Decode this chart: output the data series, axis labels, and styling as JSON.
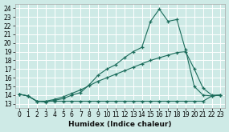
{
  "title": "",
  "xlabel": "Humidex (Indice chaleur)",
  "ylabel": "",
  "bg_color": "#ceeae6",
  "grid_color": "#b0d8d4",
  "line_color": "#1a6b5a",
  "xlim": [
    -0.5,
    23.5
  ],
  "ylim": [
    12.5,
    24.5
  ],
  "xticks": [
    0,
    1,
    2,
    3,
    4,
    5,
    6,
    7,
    8,
    9,
    10,
    11,
    12,
    13,
    14,
    15,
    16,
    17,
    18,
    19,
    20,
    21,
    22,
    23
  ],
  "yticks": [
    13,
    14,
    15,
    16,
    17,
    18,
    19,
    20,
    21,
    22,
    23,
    24
  ],
  "line1_x": [
    0,
    1,
    2,
    3,
    4,
    5,
    6,
    7,
    8,
    9,
    10,
    11,
    12,
    13,
    14,
    15,
    16,
    17,
    18,
    19,
    20,
    21,
    22,
    23
  ],
  "line1_y": [
    14.1,
    13.9,
    13.3,
    13.2,
    13.4,
    13.6,
    14.0,
    14.3,
    15.2,
    16.3,
    17.0,
    17.5,
    18.3,
    19.0,
    19.5,
    22.5,
    23.9,
    22.5,
    22.7,
    19.2,
    15.0,
    14.0,
    13.9,
    14.0
  ],
  "line2_x": [
    0,
    1,
    2,
    3,
    4,
    5,
    6,
    7,
    8,
    9,
    10,
    11,
    12,
    13,
    14,
    15,
    16,
    17,
    18,
    19,
    20,
    21,
    22,
    23
  ],
  "line2_y": [
    14.1,
    13.9,
    13.3,
    13.3,
    13.5,
    13.8,
    14.2,
    14.6,
    15.1,
    15.6,
    16.0,
    16.4,
    16.8,
    17.2,
    17.6,
    18.0,
    18.3,
    18.6,
    18.9,
    19.0,
    17.0,
    14.8,
    14.0,
    14.0
  ],
  "line3_x": [
    0,
    1,
    2,
    3,
    4,
    5,
    6,
    7,
    8,
    9,
    10,
    11,
    12,
    13,
    14,
    15,
    16,
    17,
    18,
    19,
    20,
    21,
    22,
    23
  ],
  "line3_y": [
    14.1,
    13.9,
    13.3,
    13.3,
    13.3,
    13.3,
    13.3,
    13.3,
    13.3,
    13.3,
    13.3,
    13.3,
    13.3,
    13.3,
    13.3,
    13.3,
    13.3,
    13.3,
    13.3,
    13.3,
    13.3,
    13.3,
    13.9,
    14.0
  ],
  "tick_fontsize": 5.5,
  "xlabel_fontsize": 6.5
}
